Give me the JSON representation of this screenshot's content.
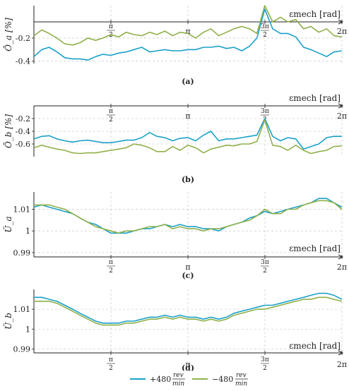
{
  "colors": {
    "series1": "#1aa0c8",
    "series2": "#8fb04a"
  },
  "legend": {
    "entries": [
      {
        "sign": "+480",
        "num": "rev",
        "den": "min"
      },
      {
        "sign": "−480",
        "num": "rev",
        "den": "min"
      }
    ]
  },
  "chart_data": [
    {
      "type": "line",
      "caption": "(a)",
      "xlabel": "εmech [rad]",
      "ylabel": "Ō_a [%]",
      "xlim": [
        0,
        6.2832
      ],
      "ylim": [
        -0.42,
        0.08
      ],
      "ytick_labels": [
        "-0.2",
        "-0.4"
      ],
      "x_ticks": [
        "π/2",
        "π",
        "3π/2",
        "2π"
      ],
      "grid": true,
      "x": [
        0.0,
        0.16,
        0.31,
        0.47,
        0.63,
        0.79,
        0.94,
        1.1,
        1.26,
        1.41,
        1.57,
        1.73,
        1.88,
        2.04,
        2.2,
        2.36,
        2.51,
        2.67,
        2.83,
        2.98,
        3.14,
        3.3,
        3.46,
        3.61,
        3.77,
        3.93,
        4.08,
        4.24,
        4.4,
        4.55,
        4.71,
        4.87,
        5.03,
        5.18,
        5.34,
        5.5,
        5.65,
        5.81,
        5.97,
        6.12,
        6.28
      ],
      "series": [
        {
          "name": "+480 rev/min",
          "values": [
            -0.36,
            -0.3,
            -0.28,
            -0.32,
            -0.37,
            -0.38,
            -0.38,
            -0.39,
            -0.36,
            -0.34,
            -0.35,
            -0.33,
            -0.32,
            -0.3,
            -0.28,
            -0.32,
            -0.31,
            -0.3,
            -0.31,
            -0.31,
            -0.3,
            -0.3,
            -0.28,
            -0.28,
            -0.27,
            -0.29,
            -0.28,
            -0.31,
            -0.27,
            -0.2,
            0.05,
            -0.12,
            -0.16,
            -0.16,
            -0.19,
            -0.28,
            -0.3,
            -0.33,
            -0.36,
            -0.32,
            -0.31
          ]
        },
        {
          "name": "−480 rev/min",
          "values": [
            -0.18,
            -0.13,
            -0.16,
            -0.2,
            -0.25,
            -0.26,
            -0.24,
            -0.2,
            -0.22,
            -0.2,
            -0.17,
            -0.19,
            -0.15,
            -0.17,
            -0.18,
            -0.15,
            -0.17,
            -0.14,
            -0.18,
            -0.15,
            -0.16,
            -0.2,
            -0.15,
            -0.12,
            -0.18,
            -0.15,
            -0.12,
            -0.1,
            -0.12,
            -0.16,
            0.08,
            -0.06,
            -0.02,
            -0.06,
            -0.04,
            -0.12,
            -0.1,
            -0.15,
            -0.12,
            -0.18,
            -0.19
          ]
        }
      ]
    },
    {
      "type": "line",
      "caption": "(b)",
      "xlabel": "εmech [rad]",
      "ylabel": "Ō_b [%]",
      "xlim": [
        0,
        6.2832
      ],
      "ylim": [
        -0.8,
        0.0
      ],
      "ytick_labels": [
        "-0.2",
        "-0.4",
        "-0.6"
      ],
      "x_ticks": [
        "π/2",
        "π",
        "3π/2",
        "2π"
      ],
      "grid": true,
      "x": [
        0.0,
        0.16,
        0.31,
        0.47,
        0.63,
        0.79,
        0.94,
        1.1,
        1.26,
        1.41,
        1.57,
        1.73,
        1.88,
        2.04,
        2.2,
        2.36,
        2.51,
        2.67,
        2.83,
        2.98,
        3.14,
        3.3,
        3.46,
        3.61,
        3.77,
        3.93,
        4.08,
        4.24,
        4.4,
        4.55,
        4.71,
        4.87,
        5.03,
        5.18,
        5.34,
        5.5,
        5.65,
        5.81,
        5.97,
        6.12,
        6.28
      ],
      "series": [
        {
          "name": "+480 rev/min",
          "values": [
            -0.52,
            -0.48,
            -0.47,
            -0.52,
            -0.55,
            -0.57,
            -0.55,
            -0.54,
            -0.56,
            -0.58,
            -0.58,
            -0.56,
            -0.54,
            -0.54,
            -0.5,
            -0.42,
            -0.48,
            -0.5,
            -0.55,
            -0.51,
            -0.5,
            -0.55,
            -0.46,
            -0.4,
            -0.55,
            -0.52,
            -0.52,
            -0.5,
            -0.48,
            -0.46,
            -0.2,
            -0.48,
            -0.55,
            -0.5,
            -0.52,
            -0.68,
            -0.64,
            -0.6,
            -0.5,
            -0.48,
            -0.48
          ]
        },
        {
          "name": "−480 rev/min",
          "values": [
            -0.66,
            -0.62,
            -0.65,
            -0.68,
            -0.7,
            -0.74,
            -0.75,
            -0.74,
            -0.74,
            -0.72,
            -0.7,
            -0.68,
            -0.66,
            -0.6,
            -0.62,
            -0.66,
            -0.72,
            -0.72,
            -0.64,
            -0.7,
            -0.62,
            -0.66,
            -0.74,
            -0.68,
            -0.65,
            -0.62,
            -0.63,
            -0.6,
            -0.6,
            -0.56,
            -0.22,
            -0.62,
            -0.64,
            -0.7,
            -0.62,
            -0.7,
            -0.75,
            -0.72,
            -0.7,
            -0.64,
            -0.63
          ]
        }
      ]
    },
    {
      "type": "line",
      "caption": "(c)",
      "xlabel": "εmech [rad]",
      "ylabel": "Ü_a",
      "xlim": [
        0,
        6.2832
      ],
      "ylim": [
        0.988,
        1.018
      ],
      "ytick_labels": [
        "1.01",
        "1",
        "0.99"
      ],
      "x_ticks": [
        "π/2",
        "π",
        "3π/2",
        "2π"
      ],
      "grid": true,
      "x": [
        0.0,
        0.16,
        0.31,
        0.47,
        0.63,
        0.79,
        0.94,
        1.1,
        1.26,
        1.41,
        1.57,
        1.73,
        1.88,
        2.04,
        2.2,
        2.36,
        2.51,
        2.67,
        2.83,
        2.98,
        3.14,
        3.3,
        3.46,
        3.61,
        3.77,
        3.93,
        4.08,
        4.24,
        4.4,
        4.55,
        4.71,
        4.87,
        5.03,
        5.18,
        5.34,
        5.5,
        5.65,
        5.81,
        5.97,
        6.12,
        6.28
      ],
      "series": [
        {
          "name": "+480 rev/min",
          "values": [
            1.011,
            1.012,
            1.011,
            1.01,
            1.009,
            1.008,
            1.006,
            1.004,
            1.003,
            1.001,
            0.999,
            0.999,
            0.999,
            1.0,
            1.001,
            1.001,
            1.002,
            1.003,
            1.002,
            1.003,
            1.002,
            1.002,
            1.001,
            1.001,
            1.0,
            1.002,
            1.003,
            1.004,
            1.006,
            1.007,
            1.009,
            1.008,
            1.009,
            1.01,
            1.011,
            1.012,
            1.013,
            1.015,
            1.015,
            1.013,
            1.011
          ]
        },
        {
          "name": "−480 rev/min",
          "values": [
            1.012,
            1.012,
            1.012,
            1.011,
            1.01,
            1.008,
            1.006,
            1.004,
            1.002,
            1.001,
            1.0,
            0.999,
            1.0,
            1.0,
            1.001,
            1.002,
            1.002,
            1.003,
            1.001,
            1.002,
            1.001,
            1.001,
            1.0,
            1.001,
            1.001,
            1.002,
            1.003,
            1.004,
            1.005,
            1.007,
            1.01,
            1.008,
            1.008,
            1.01,
            1.01,
            1.012,
            1.013,
            1.014,
            1.014,
            1.013,
            1.01
          ]
        }
      ]
    },
    {
      "type": "line",
      "caption": "(d)",
      "xlabel": "εmech [rad]",
      "ylabel": "Ü_b",
      "xlim": [
        0,
        6.2832
      ],
      "ylim": [
        0.988,
        1.02
      ],
      "ytick_labels": [
        "1.01",
        "1",
        "0.99"
      ],
      "x_ticks": [
        "π/2",
        "π",
        "3π/2",
        "2π"
      ],
      "grid": true,
      "x": [
        0.0,
        0.16,
        0.31,
        0.47,
        0.63,
        0.79,
        0.94,
        1.1,
        1.26,
        1.41,
        1.57,
        1.73,
        1.88,
        2.04,
        2.2,
        2.36,
        2.51,
        2.67,
        2.83,
        2.98,
        3.14,
        3.3,
        3.46,
        3.61,
        3.77,
        3.93,
        4.08,
        4.24,
        4.4,
        4.55,
        4.71,
        4.87,
        5.03,
        5.18,
        5.34,
        5.5,
        5.65,
        5.81,
        5.97,
        6.12,
        6.28
      ],
      "series": [
        {
          "name": "+480 rev/min",
          "values": [
            1.016,
            1.016,
            1.015,
            1.014,
            1.012,
            1.01,
            1.008,
            1.006,
            1.004,
            1.003,
            1.003,
            1.003,
            1.004,
            1.004,
            1.005,
            1.006,
            1.006,
            1.007,
            1.006,
            1.007,
            1.006,
            1.006,
            1.005,
            1.006,
            1.005,
            1.006,
            1.008,
            1.009,
            1.01,
            1.011,
            1.012,
            1.012,
            1.013,
            1.014,
            1.015,
            1.016,
            1.017,
            1.018,
            1.018,
            1.017,
            1.015
          ]
        },
        {
          "name": "−480 rev/min",
          "values": [
            1.014,
            1.014,
            1.014,
            1.013,
            1.011,
            1.009,
            1.007,
            1.005,
            1.003,
            1.002,
            1.002,
            1.002,
            1.003,
            1.003,
            1.004,
            1.005,
            1.005,
            1.006,
            1.005,
            1.006,
            1.005,
            1.005,
            1.004,
            1.005,
            1.004,
            1.005,
            1.007,
            1.008,
            1.009,
            1.01,
            1.01,
            1.011,
            1.012,
            1.013,
            1.014,
            1.015,
            1.015,
            1.016,
            1.016,
            1.015,
            1.014
          ]
        }
      ]
    }
  ]
}
